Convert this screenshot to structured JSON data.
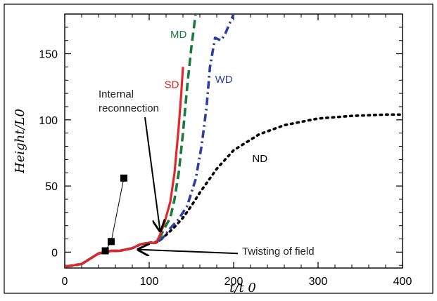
{
  "chart_data": {
    "type": "line",
    "title": "",
    "xlabel": "t/t 0",
    "ylabel": "Height/L0",
    "xlim": [
      0,
      400
    ],
    "ylim": [
      -12,
      180
    ],
    "x_ticks": [
      0,
      100,
      200,
      300,
      400
    ],
    "y_ticks": [
      0,
      50,
      100,
      150
    ],
    "x_tick_labels": [
      "0",
      "100",
      "200",
      "300",
      "400"
    ],
    "y_tick_labels": [
      "0",
      "50",
      "100",
      "150"
    ],
    "grid": false,
    "series": [
      {
        "name": "ND",
        "color": "#000000",
        "style": "dotted",
        "x": [
          0,
          20,
          40,
          55,
          65,
          80,
          90,
          100,
          110,
          120,
          130,
          140,
          150,
          160,
          170,
          180,
          200,
          230,
          260,
          300,
          340,
          380,
          400
        ],
        "y": [
          -11,
          -9,
          -1,
          1,
          1,
          3,
          6,
          7,
          8,
          13,
          19,
          26,
          35,
          45,
          54,
          63,
          77,
          89,
          96,
          101,
          103,
          104,
          104
        ]
      },
      {
        "name": "WD",
        "color": "#2E3FA3",
        "style": "dashdot",
        "x": [
          0,
          20,
          40,
          55,
          65,
          80,
          90,
          100,
          108,
          115,
          125,
          135,
          145,
          155,
          162,
          168,
          172,
          178,
          185,
          190,
          200
        ],
        "y": [
          -11,
          -9,
          -1,
          1,
          1,
          3,
          6,
          7,
          7,
          10,
          18,
          25,
          35,
          55,
          80,
          110,
          140,
          162,
          160,
          165,
          180
        ]
      },
      {
        "name": "MD",
        "color": "#1B7A3E",
        "style": "dashed",
        "x": [
          0,
          20,
          40,
          55,
          65,
          80,
          90,
          100,
          108,
          112,
          118,
          125,
          130,
          135,
          140,
          145,
          150,
          155
        ],
        "y": [
          -11,
          -9,
          -1,
          1,
          1,
          3,
          6,
          7,
          7,
          10,
          18,
          26,
          40,
          60,
          90,
          125,
          155,
          180
        ]
      },
      {
        "name": "SD",
        "color": "#E3262A",
        "style": "solid",
        "x": [
          0,
          20,
          40,
          55,
          65,
          80,
          90,
          100,
          108,
          112,
          118,
          125,
          130,
          135,
          138,
          140
        ],
        "y": [
          -11,
          -9,
          -1,
          1,
          1,
          3,
          6,
          7,
          7,
          12,
          22,
          38,
          60,
          95,
          120,
          140
        ]
      }
    ],
    "markers": {
      "style": "filled-square",
      "color": "#000000",
      "points": [
        {
          "x": 48,
          "y": 1
        },
        {
          "x": 55,
          "y": 8
        },
        {
          "x": 70,
          "y": 56
        }
      ]
    },
    "series_labels": [
      {
        "text": "MD",
        "color": "#1B7A3E",
        "x": 125,
        "y": 162
      },
      {
        "text": "SD",
        "color": "#E3262A",
        "x": 118,
        "y": 124
      },
      {
        "text": "WD",
        "color": "#2E3FA3",
        "x": 178,
        "y": 128
      },
      {
        "text": "ND",
        "color": "#000000",
        "x": 222,
        "y": 68
      }
    ],
    "annotations": [
      {
        "lines": [
          "Internal",
          "reconnection"
        ],
        "text_x": 40,
        "text_y": 117,
        "arrow_from": [
          95,
          102
        ],
        "arrow_to": [
          113,
          16
        ]
      },
      {
        "lines": [
          "Twisting of field"
        ],
        "text_x": 210,
        "text_y": -2,
        "arrow_from": [
          205,
          -1
        ],
        "arrow_to": [
          87,
          2
        ]
      }
    ]
  }
}
